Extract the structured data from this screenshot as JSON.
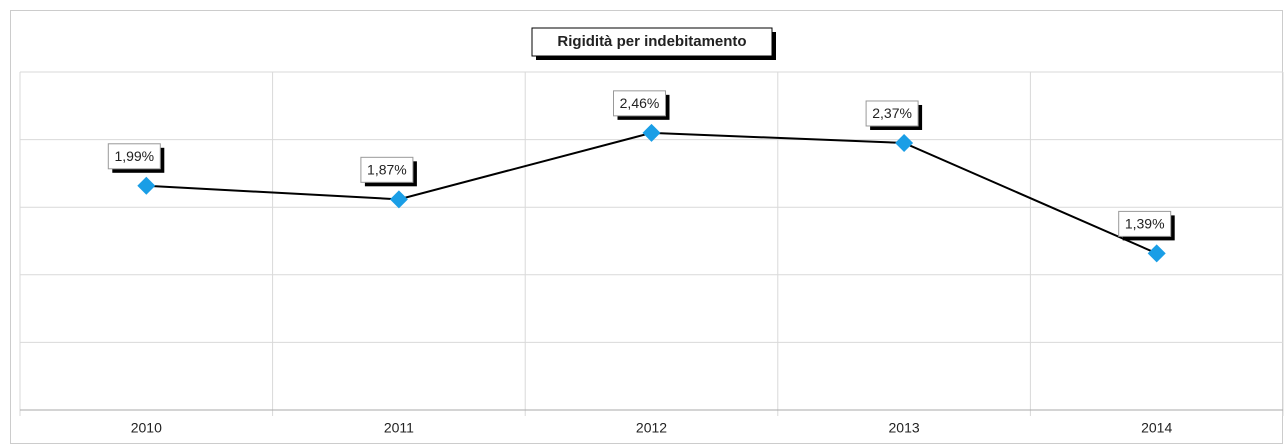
{
  "chart_data": {
    "type": "line",
    "title": "Rigidità per indebitamento",
    "categories": [
      "2010",
      "2011",
      "2012",
      "2013",
      "2014"
    ],
    "series": [
      {
        "name": "Rigidità per indebitamento",
        "color": "#1a9ee6",
        "values": [
          1.99,
          1.87,
          2.46,
          2.37,
          1.39
        ],
        "value_labels": [
          "1,99%",
          "1,87%",
          "2,46%",
          "2,37%",
          "1,39%"
        ]
      }
    ],
    "ylim": [
      0,
      3
    ],
    "yticks": [
      0,
      0.6,
      1.2,
      1.8,
      2.4,
      3
    ],
    "grid": true
  }
}
